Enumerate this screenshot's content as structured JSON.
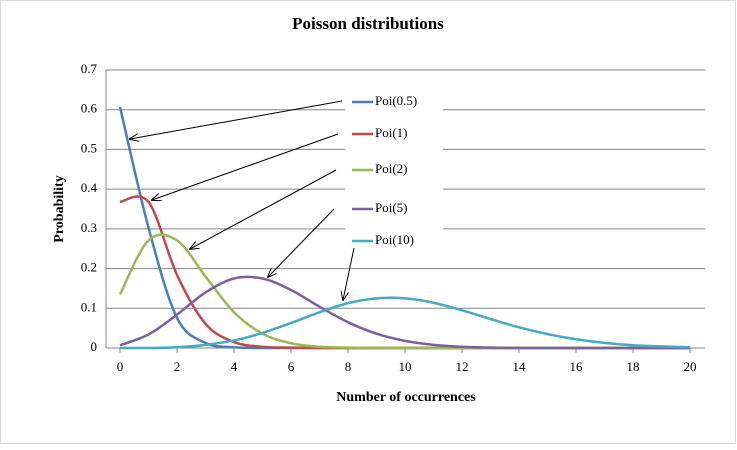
{
  "chart_data": {
    "type": "line",
    "title": "Poisson distributions",
    "x_label": "Number of occurrences",
    "y_label": "Probability",
    "x": [
      0,
      1,
      2,
      3,
      4,
      5,
      6,
      7,
      8,
      9,
      10,
      11,
      12,
      13,
      14,
      15,
      16,
      17,
      18,
      19,
      20
    ],
    "series": [
      {
        "name": "Poi(0.5)",
        "color": "#4a7ebb",
        "values": [
          0.607,
          0.303,
          0.076,
          0.013,
          0.002,
          0,
          0,
          0,
          0,
          0,
          0,
          0,
          0,
          0,
          0,
          0,
          0,
          0,
          0,
          0,
          0
        ]
      },
      {
        "name": "Poi(1)",
        "color": "#be4b48",
        "values": [
          0.368,
          0.368,
          0.184,
          0.061,
          0.015,
          0.003,
          0.001,
          0,
          0,
          0,
          0,
          0,
          0,
          0,
          0,
          0,
          0,
          0,
          0,
          0,
          0
        ]
      },
      {
        "name": "Poi(2)",
        "color": "#98b954",
        "values": [
          0.135,
          0.271,
          0.271,
          0.18,
          0.09,
          0.036,
          0.012,
          0.003,
          0.001,
          0,
          0,
          0,
          0,
          0,
          0,
          0,
          0,
          0,
          0,
          0,
          0
        ]
      },
      {
        "name": "Poi(5)",
        "color": "#7d60a0",
        "values": [
          0.007,
          0.034,
          0.084,
          0.14,
          0.175,
          0.175,
          0.146,
          0.104,
          0.065,
          0.036,
          0.018,
          0.008,
          0.003,
          0.001,
          0,
          0,
          0,
          0,
          0,
          0,
          0
        ]
      },
      {
        "name": "Poi(10)",
        "color": "#46aac5",
        "values": [
          0,
          0,
          0.002,
          0.008,
          0.019,
          0.038,
          0.063,
          0.09,
          0.113,
          0.125,
          0.125,
          0.114,
          0.095,
          0.073,
          0.052,
          0.035,
          0.022,
          0.013,
          0.007,
          0.004,
          0.002
        ]
      }
    ],
    "xlim": [
      0,
      20
    ],
    "xticks": [
      0,
      2,
      4,
      6,
      8,
      10,
      12,
      14,
      16,
      18,
      20
    ],
    "ylim": [
      0,
      0.7
    ],
    "yticks": [
      0,
      0.1,
      0.2,
      0.3,
      0.4,
      0.5,
      0.6,
      0.7
    ],
    "grid": true
  }
}
